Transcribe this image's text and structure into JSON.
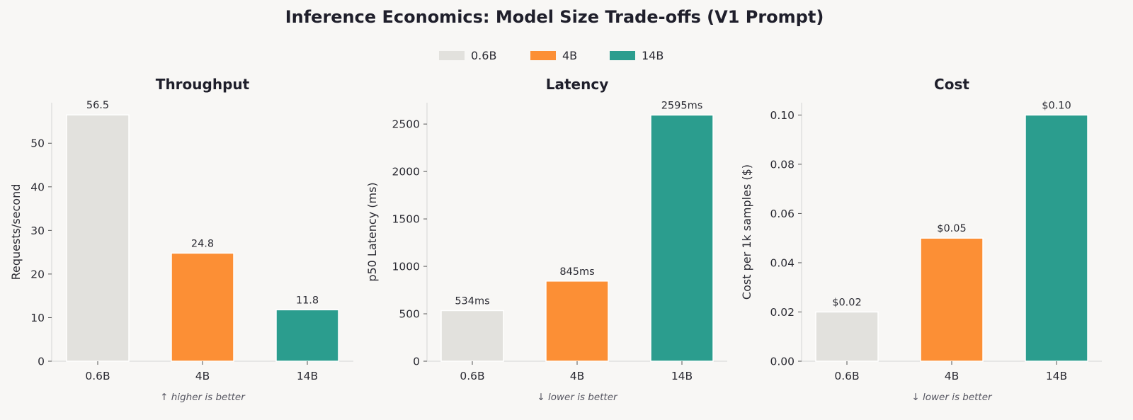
{
  "suptitle": "Inference Economics: Model Size Trade-offs (V1 Prompt)",
  "colors": {
    "0.6B": "#e2e1dd",
    "4B": "#fc8f35",
    "14B": "#2b9d8e"
  },
  "legend": {
    "placement": "top-center",
    "entries": [
      "0.6B",
      "4B",
      "14B"
    ]
  },
  "chart_data": [
    {
      "type": "bar",
      "title": "Throughput",
      "categories": [
        "0.6B",
        "4B",
        "14B"
      ],
      "values": [
        56.5,
        24.8,
        11.8
      ],
      "value_labels": [
        "56.5",
        "24.8",
        "11.8"
      ],
      "ylabel": "Requests/second",
      "xlabel": "",
      "ylim": [
        0,
        59.3
      ],
      "yticks": [
        0,
        10,
        20,
        30,
        40,
        50
      ],
      "ytick_labels": [
        "0",
        "10",
        "20",
        "30",
        "40",
        "50"
      ],
      "note": "↑ higher is better",
      "grid": false
    },
    {
      "type": "bar",
      "title": "Latency",
      "categories": [
        "0.6B",
        "4B",
        "14B"
      ],
      "values": [
        534,
        845,
        2595
      ],
      "value_labels": [
        "534ms",
        "845ms",
        "2595ms"
      ],
      "ylabel": "p50 Latency (ms)",
      "xlabel": "",
      "ylim": [
        0,
        2725
      ],
      "yticks": [
        0,
        500,
        1000,
        1500,
        2000,
        2500
      ],
      "ytick_labels": [
        "0",
        "500",
        "1000",
        "1500",
        "2000",
        "2500"
      ],
      "note": "↓ lower is better",
      "grid": false
    },
    {
      "type": "bar",
      "title": "Cost",
      "categories": [
        "0.6B",
        "4B",
        "14B"
      ],
      "values": [
        0.02,
        0.05,
        0.1
      ],
      "value_labels": [
        "$0.02",
        "$0.05",
        "$0.10"
      ],
      "ylabel": "Cost per 1k samples ($)",
      "xlabel": "",
      "ylim": [
        0,
        0.105
      ],
      "yticks": [
        0,
        0.02,
        0.04,
        0.06,
        0.08,
        0.1
      ],
      "ytick_labels": [
        "0.00",
        "0.02",
        "0.04",
        "0.06",
        "0.08",
        "0.10"
      ],
      "note": "↓ lower is better",
      "grid": false
    }
  ]
}
